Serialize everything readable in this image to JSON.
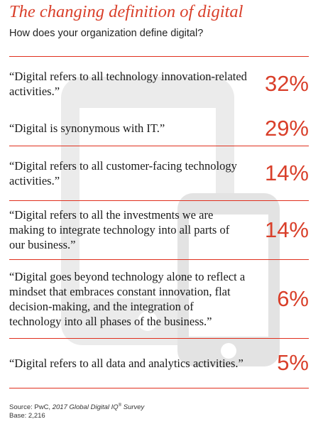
{
  "header": {
    "title": "The changing definition of digital",
    "subtitle": "How does your organization define digital?"
  },
  "chart_data": {
    "type": "table",
    "title": "The changing definition of digital",
    "subtitle": "How does your organization define digital?",
    "rows": [
      {
        "statement": "“Digital refers to all technology innovation-related activities.”",
        "value": 32,
        "label": "32%"
      },
      {
        "statement": "“Digital is synonymous with IT.”",
        "value": 29,
        "label": "29%"
      },
      {
        "statement": "“Digital refers to all customer-facing technology activities.”",
        "value": 14,
        "label": "14%"
      },
      {
        "statement": "“Digital refers to all the investments we are making to integrate technology into all parts of our business.”",
        "value": 14,
        "label": "14%"
      },
      {
        "statement": "“Digital goes beyond technology alone to reflect a mindset that embraces constant innovation, flat decision-making, and the integration of technology into all phases of the business.”",
        "value": 6,
        "label": "6%"
      },
      {
        "statement": "“Digital refers to all data and analytics activities.”",
        "value": 5,
        "label": "5%"
      }
    ]
  },
  "footnote": {
    "source_prefix": "Source: PwC, ",
    "survey_name": "2017 Global Digital IQ",
    "registered_mark": "®",
    "survey_suffix": " Survey",
    "base": "Base: 2,216"
  },
  "colors": {
    "accent": "#d93f2a",
    "rule": "#e0301e",
    "background_art": "#e8e8e8"
  },
  "background_icons": [
    "tablet-icon",
    "phone-icon"
  ]
}
